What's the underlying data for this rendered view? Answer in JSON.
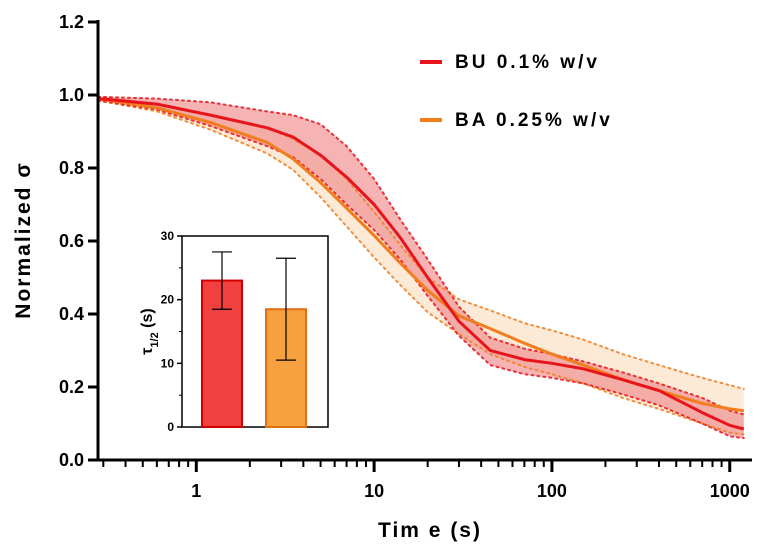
{
  "chart_data": [
    {
      "type": "line",
      "title": "",
      "xlabel": "Tim e (s)",
      "ylabel": "Normalized σ",
      "xscale": "log",
      "xlim": [
        0.28,
        1300
      ],
      "ylim": [
        0,
        1.2
      ],
      "xticks": [
        1,
        10,
        100,
        1000
      ],
      "xtick_labels": [
        "1",
        "10",
        "100",
        "1000"
      ],
      "yticks": [
        0,
        0.2,
        0.4,
        0.6,
        0.8,
        1.0,
        1.2
      ],
      "ytick_labels": [
        "0.0",
        "0.2",
        "0.4",
        "0.6",
        "0.8",
        "1.0",
        "1.2"
      ],
      "grid": false,
      "legend_position": "top-right",
      "series": [
        {
          "name": "BU 0.1% w/v",
          "color": "#e8141b",
          "band_color": "#f08a8c",
          "x": [
            0.28,
            0.6,
            1.2,
            2.5,
            3.5,
            5,
            7,
            10,
            14,
            20,
            30,
            45,
            70,
            100,
            150,
            250,
            400,
            700,
            1000,
            1200
          ],
          "y": [
            0.99,
            0.975,
            0.945,
            0.91,
            0.885,
            0.835,
            0.775,
            0.7,
            0.61,
            0.5,
            0.38,
            0.3,
            0.275,
            0.265,
            0.25,
            0.22,
            0.19,
            0.13,
            0.095,
            0.085
          ],
          "upper": [
            0.995,
            0.99,
            0.98,
            0.955,
            0.945,
            0.92,
            0.86,
            0.77,
            0.66,
            0.55,
            0.42,
            0.335,
            0.305,
            0.29,
            0.27,
            0.24,
            0.21,
            0.17,
            0.135,
            0.125
          ],
          "lower": [
            0.985,
            0.96,
            0.915,
            0.86,
            0.83,
            0.77,
            0.7,
            0.63,
            0.55,
            0.45,
            0.34,
            0.26,
            0.235,
            0.225,
            0.21,
            0.18,
            0.15,
            0.1,
            0.065,
            0.06
          ]
        },
        {
          "name": "BA 0.25% w/v",
          "color": "#f07d1e",
          "band_color": "#fbe3c8",
          "x": [
            0.28,
            0.6,
            1.2,
            2.5,
            3.5,
            5,
            7,
            10,
            14,
            20,
            30,
            45,
            70,
            100,
            150,
            250,
            400,
            700,
            1000,
            1200
          ],
          "y": [
            0.99,
            0.965,
            0.925,
            0.87,
            0.825,
            0.76,
            0.69,
            0.615,
            0.54,
            0.465,
            0.395,
            0.36,
            0.32,
            0.29,
            0.26,
            0.22,
            0.19,
            0.155,
            0.14,
            0.135
          ],
          "upper": [
            0.995,
            0.975,
            0.945,
            0.91,
            0.88,
            0.835,
            0.77,
            0.68,
            0.59,
            0.5,
            0.44,
            0.41,
            0.375,
            0.355,
            0.33,
            0.29,
            0.26,
            0.225,
            0.205,
            0.195
          ],
          "lower": [
            0.985,
            0.955,
            0.905,
            0.84,
            0.795,
            0.72,
            0.64,
            0.555,
            0.48,
            0.405,
            0.345,
            0.29,
            0.255,
            0.235,
            0.21,
            0.17,
            0.14,
            0.1,
            0.075,
            0.07
          ]
        }
      ]
    },
    {
      "type": "bar",
      "title": "",
      "ylabel": "τ1/2 (s)",
      "ylabel_main": "τ",
      "ylabel_sub": "1/2",
      "ylabel_unit": " (s)",
      "ylim": [
        0,
        30
      ],
      "yticks": [
        0,
        10,
        20,
        30
      ],
      "ytick_labels": [
        "0",
        "10",
        "20",
        "30"
      ],
      "categories": [
        "BU 0.1% w/v",
        "BA 0.25% w/v"
      ],
      "values": [
        23,
        18.5
      ],
      "error_low": [
        18.5,
        10.5
      ],
      "error_high": [
        27.5,
        26.5
      ],
      "colors": [
        "#f04040",
        "#f7a040"
      ],
      "edge_colors": [
        "#d00000",
        "#e07010"
      ]
    }
  ]
}
